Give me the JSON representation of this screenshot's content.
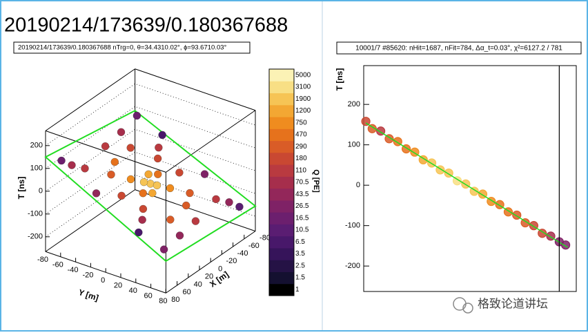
{
  "page_title": "20190214/173639/0.180367688",
  "watermark": "格致论道讲坛",
  "chart_data": [
    {
      "type": "scatter3d",
      "title": "20190214/173639/0.180367688 nTrg=0, θ=34.4310.02°, ϕ=93.6710.03°",
      "x_label": "X [m]",
      "y_label": "Y [m]",
      "t_label": "T [ns]",
      "xlim": [
        -80,
        80
      ],
      "ylim": [
        -80,
        80
      ],
      "tlim": [
        -265,
        265
      ],
      "xticks": [
        80,
        60,
        40,
        20,
        0,
        -20,
        -40,
        -60,
        -80
      ],
      "yticks": [
        -80,
        -60,
        -40,
        -20,
        0,
        20,
        40,
        60,
        80
      ],
      "tticks": [
        200,
        100,
        0,
        -100,
        -200
      ],
      "plane": {
        "x": [
          80,
          80,
          -80,
          -80
        ],
        "y": [
          -80,
          80,
          80,
          -80
        ],
        "t": [
          150,
          -125,
          -155,
          82
        ],
        "color": "#22dd22"
      },
      "x": [
        0,
        5,
        -5,
        10,
        -10,
        15,
        -15,
        20,
        -20,
        30,
        -30,
        40,
        -40,
        50,
        -50,
        60,
        -60,
        70,
        -70,
        25,
        -25,
        55,
        -55,
        70,
        -70,
        65,
        -65,
        35,
        -35,
        10,
        -10,
        45,
        -45,
        0,
        0,
        75,
        -75
      ],
      "y": [
        0,
        -5,
        5,
        10,
        -10,
        -15,
        15,
        5,
        -5,
        -30,
        30,
        20,
        -20,
        -50,
        50,
        -60,
        60,
        -20,
        20,
        45,
        -45,
        30,
        -30,
        70,
        -70,
        -70,
        70,
        65,
        -65,
        -40,
        40,
        -5,
        5,
        60,
        -60,
        40,
        -40
      ],
      "t": [
        -12,
        -2,
        -22,
        -25,
        1,
        16,
        -40,
        -14,
        -10,
        45,
        -70,
        -32,
        8,
        83,
        -108,
        103,
        -127,
        42,
        -66,
        -76,
        52,
        -43,
        19,
        -102,
        88,
        120,
        -144,
        -106,
        81,
        55,
        -79,
        6,
        -34,
        -108,
        84,
        -53,
        29
      ],
      "q": [
        3000,
        2500,
        2000,
        1500,
        1800,
        900,
        800,
        600,
        700,
        400,
        350,
        250,
        200,
        150,
        120,
        80,
        60,
        45,
        40,
        300,
        280,
        100,
        110,
        30,
        25,
        20,
        15,
        70,
        90,
        500,
        450,
        200,
        180,
        120,
        130,
        10,
        8
      ]
    },
    {
      "type": "colorbar",
      "label": "Q [PE]",
      "ticks": [
        1,
        1.5,
        2.5,
        3.5,
        6.5,
        10.5,
        16.5,
        26.5,
        43.5,
        70.5,
        110,
        180,
        290,
        470,
        750,
        1200,
        1900,
        3100,
        5000
      ],
      "colors": [
        "#000000",
        "#141030",
        "#251245",
        "#36145a",
        "#48186a",
        "#5a1d72",
        "#6c1f6e",
        "#7f2266",
        "#93275a",
        "#a62e4c",
        "#b93a40",
        "#c94832",
        "#d95c27",
        "#e6721c",
        "#ef8c1f",
        "#f3a733",
        "#f6c455",
        "#f8df85",
        "#fbf2b5"
      ]
    },
    {
      "type": "scatter",
      "title": "10001/7 #85620: nHit=1687, nFit=784, Δα_t=0.03°, χ²=6127.2 / 781",
      "y_label": "T [ns]",
      "xlim": [
        0,
        100
      ],
      "ylim": [
        -263,
        296
      ],
      "yticks": [
        200,
        100,
        0,
        -100,
        -200
      ],
      "marker_x": 92,
      "fit": {
        "x": [
          1,
          96
        ],
        "values": [
          154,
          -154
        ],
        "color": "#22dd22"
      },
      "x": [
        1,
        4,
        8,
        12,
        16,
        20,
        24,
        28,
        32,
        36,
        40,
        44,
        48,
        52,
        56,
        60,
        64,
        68,
        72,
        76,
        80,
        84,
        88,
        92,
        95
      ],
      "values": [
        158,
        140,
        134,
        115,
        108,
        90,
        82,
        63,
        55,
        38,
        30,
        11,
        3,
        -15,
        -22,
        -40,
        -48,
        -66,
        -74,
        -93,
        -100,
        -119,
        -126,
        -140,
        -148
      ],
      "q": [
        200,
        300,
        150,
        400,
        500,
        600,
        900,
        1500,
        2000,
        2500,
        3000,
        3200,
        2800,
        2000,
        1500,
        1000,
        700,
        500,
        400,
        300,
        250,
        200,
        100,
        40,
        30
      ]
    }
  ]
}
